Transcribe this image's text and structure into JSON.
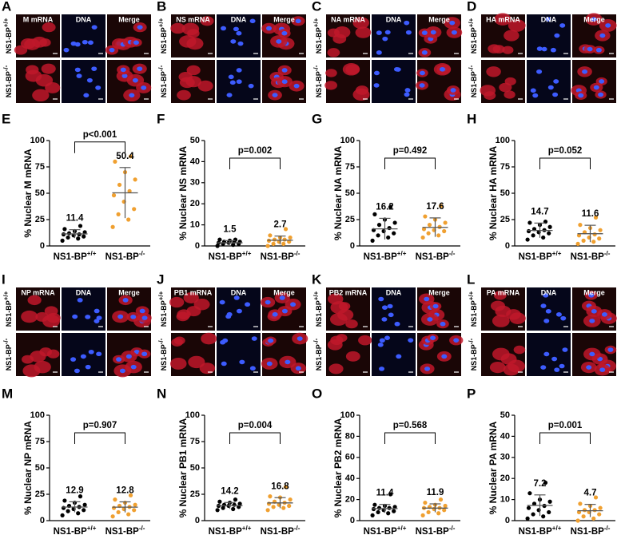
{
  "image_panels": [
    {
      "letter": "A",
      "headers": [
        "M mRNA",
        "DNA",
        "Merge"
      ],
      "rows": [
        {
          "label": "NS1-BP",
          "sup": "+/+"
        },
        {
          "label": "NS1-BP",
          "sup": "-/-"
        }
      ]
    },
    {
      "letter": "B",
      "headers": [
        "NS mRNA",
        "DNA",
        "Merge"
      ],
      "rows": [
        {
          "label": "NS1-BP",
          "sup": "+/+"
        },
        {
          "label": "NS1-BP",
          "sup": "-/-"
        }
      ]
    },
    {
      "letter": "C",
      "headers": [
        "NA mRNA",
        "DNA",
        "Merge"
      ],
      "rows": [
        {
          "label": "NS1-BP",
          "sup": "+/+"
        },
        {
          "label": "NS1-BP",
          "sup": "-/-"
        }
      ]
    },
    {
      "letter": "D",
      "headers": [
        "HA mRNA",
        "DNA",
        "Merge"
      ],
      "rows": [
        {
          "label": "NS1-BP",
          "sup": "+/+"
        },
        {
          "label": "NS1-BP",
          "sup": "-/-"
        }
      ]
    },
    {
      "letter": "I",
      "headers": [
        "NP mRNA",
        "DNA",
        "Merge"
      ],
      "rows": [
        {
          "label": "NS1-BP",
          "sup": "+/+"
        },
        {
          "label": "NS1-BP",
          "sup": "-/-"
        }
      ]
    },
    {
      "letter": "J",
      "headers": [
        "PB1 mRNA",
        "DNA",
        "Merge"
      ],
      "rows": [
        {
          "label": "NS1-BP",
          "sup": "+/+"
        },
        {
          "label": "NS1-BP",
          "sup": "-/-"
        }
      ]
    },
    {
      "letter": "K",
      "headers": [
        "PB2 mRNA",
        "DNA",
        "Merge"
      ],
      "rows": [
        {
          "label": "NS1-BP",
          "sup": "+/+"
        },
        {
          "label": "NS1-BP",
          "sup": "-/-"
        }
      ]
    },
    {
      "letter": "L",
      "headers": [
        "PA mRNA",
        "DNA",
        "Merge"
      ],
      "rows": [
        {
          "label": "NS1-BP",
          "sup": "+/+"
        },
        {
          "label": "NS1-BP",
          "sup": "-/-"
        }
      ]
    }
  ],
  "chart_data": [
    {
      "type": "scatter",
      "panel": "E",
      "y_label": "% Nuclear M mRNA",
      "categories": [
        "NS1-BP",
        "NS1-BP"
      ],
      "category_sups": [
        "+/+",
        "-/-"
      ],
      "ylim": [
        0,
        100
      ],
      "yticks": [
        0,
        25,
        50,
        75,
        100
      ],
      "annotation": "p<0.001",
      "series": [
        {
          "color": "#000000",
          "values": [
            5,
            7,
            8,
            9,
            10,
            11,
            11,
            12,
            13,
            14,
            16,
            19
          ],
          "mean": 11.4,
          "sd": 4
        },
        {
          "color": "#f0a030",
          "values": [
            18,
            25,
            30,
            35,
            42,
            48,
            52,
            58,
            63,
            70,
            80,
            85
          ],
          "mean": 50.4,
          "sd": 24
        }
      ]
    },
    {
      "type": "scatter",
      "panel": "F",
      "y_label": "% Nuclear NS mRNA",
      "categories": [
        "NS1-BP",
        "NS1-BP"
      ],
      "category_sups": [
        "+/+",
        "-/-"
      ],
      "ylim": [
        0,
        50
      ],
      "yticks": [
        0,
        10,
        20,
        30,
        40,
        50
      ],
      "annotation": "p=0.002",
      "series": [
        {
          "color": "#000000",
          "values": [
            0,
            0.5,
            1,
            1,
            1.5,
            1.5,
            2,
            2,
            2,
            2.5,
            3,
            3
          ],
          "mean": 1.5,
          "sd": 1
        },
        {
          "color": "#f0a030",
          "values": [
            0,
            1,
            1,
            2,
            2,
            2.5,
            3,
            3,
            4,
            4,
            5,
            8
          ],
          "mean": 2.7,
          "sd": 2
        }
      ]
    },
    {
      "type": "scatter",
      "panel": "G",
      "y_label": "% Nuclear NA mRNA",
      "categories": [
        "NS1-BP",
        "NS1-BP"
      ],
      "category_sups": [
        "+/+",
        "-/-"
      ],
      "ylim": [
        0,
        100
      ],
      "yticks": [
        0,
        25,
        50,
        75,
        100
      ],
      "annotation": "p=0.492",
      "series": [
        {
          "color": "#000000",
          "values": [
            5,
            8,
            10,
            12,
            14,
            15,
            17,
            20,
            22,
            25,
            30,
            37
          ],
          "mean": 16.2,
          "sd": 10
        },
        {
          "color": "#f0a030",
          "values": [
            8,
            10,
            12,
            14,
            15,
            16,
            18,
            20,
            22,
            25,
            28,
            38
          ],
          "mean": 17.6,
          "sd": 9
        }
      ]
    },
    {
      "type": "scatter",
      "panel": "H",
      "y_label": "% Nuclear HA mRNA",
      "categories": [
        "NS1-BP",
        "NS1-BP"
      ],
      "category_sups": [
        "+/+",
        "-/-"
      ],
      "ylim": [
        0,
        100
      ],
      "yticks": [
        0,
        25,
        50,
        75,
        100
      ],
      "annotation": "p=0.052",
      "series": [
        {
          "color": "#000000",
          "values": [
            6,
            8,
            10,
            12,
            13,
            14,
            15,
            16,
            18,
            20,
            22,
            23
          ],
          "mean": 14.7,
          "sd": 7
        },
        {
          "color": "#f0a030",
          "values": [
            2,
            4,
            5,
            7,
            8,
            10,
            11,
            13,
            15,
            17,
            20,
            27
          ],
          "mean": 11.6,
          "sd": 8
        }
      ]
    },
    {
      "type": "scatter",
      "panel": "M",
      "y_label": "% Nuclear NP mRNA",
      "categories": [
        "NS1-BP",
        "NS1-BP"
      ],
      "category_sups": [
        "+/+",
        "-/-"
      ],
      "ylim": [
        0,
        100
      ],
      "yticks": [
        0,
        25,
        50,
        75,
        100
      ],
      "annotation": "p=0.907",
      "series": [
        {
          "color": "#000000",
          "values": [
            5,
            7,
            9,
            10,
            11,
            12,
            13,
            14,
            15,
            17,
            19,
            23
          ],
          "mean": 12.9,
          "sd": 5
        },
        {
          "color": "#f0a030",
          "values": [
            4,
            6,
            8,
            10,
            11,
            12,
            13,
            14,
            15,
            17,
            20,
            24
          ],
          "mean": 12.8,
          "sd": 5
        }
      ]
    },
    {
      "type": "scatter",
      "panel": "N",
      "y_label": "% Nuclear PB1 mRNA",
      "categories": [
        "NS1-BP",
        "NS1-BP"
      ],
      "category_sups": [
        "+/+",
        "-/-"
      ],
      "ylim": [
        0,
        100
      ],
      "yticks": [
        0,
        25,
        50,
        75,
        100
      ],
      "annotation": "p=0.004",
      "series": [
        {
          "color": "#000000",
          "values": [
            10,
            11,
            12,
            13,
            14,
            14,
            15,
            15,
            16,
            17,
            18,
            20
          ],
          "mean": 14.2,
          "sd": 3
        },
        {
          "color": "#f0a030",
          "values": [
            10,
            12,
            13,
            14,
            15,
            16,
            17,
            18,
            20,
            22,
            23,
            32
          ],
          "mean": 16.8,
          "sd": 5
        }
      ]
    },
    {
      "type": "scatter",
      "panel": "O",
      "y_label": "% Nuclear PB2 mRNA",
      "categories": [
        "NS1-BP",
        "NS1-BP"
      ],
      "category_sups": [
        "+/+",
        "-/-"
      ],
      "ylim": [
        0,
        100
      ],
      "yticks": [
        0,
        20,
        40,
        60,
        80,
        100
      ],
      "annotation": "p=0.568",
      "series": [
        {
          "color": "#000000",
          "values": [
            5,
            7,
            8,
            9,
            10,
            11,
            12,
            12,
            13,
            14,
            15,
            25
          ],
          "mean": 11.4,
          "sd": 4
        },
        {
          "color": "#f0a030",
          "values": [
            5,
            7,
            8,
            10,
            11,
            12,
            12,
            13,
            14,
            15,
            17,
            20
          ],
          "mean": 11.9,
          "sd": 4
        }
      ]
    },
    {
      "type": "scatter",
      "panel": "P",
      "y_label": "% Nuclear PA mRNA",
      "categories": [
        "NS1-BP",
        "NS1-BP"
      ],
      "category_sups": [
        "+/+",
        "-/-"
      ],
      "ylim": [
        0,
        50
      ],
      "yticks": [
        0,
        10,
        20,
        30,
        40,
        50
      ],
      "annotation": "p=0.001",
      "series": [
        {
          "color": "#000000",
          "values": [
            1,
            2,
            3,
            4,
            5,
            6,
            7,
            8,
            9,
            10,
            13,
            18
          ],
          "mean": 7.2,
          "sd": 5
        },
        {
          "color": "#f0a030",
          "values": [
            0,
            1,
            2,
            3,
            4,
            4,
            5,
            5,
            6,
            7,
            8,
            11
          ],
          "mean": 4.7,
          "sd": 3
        }
      ]
    }
  ]
}
